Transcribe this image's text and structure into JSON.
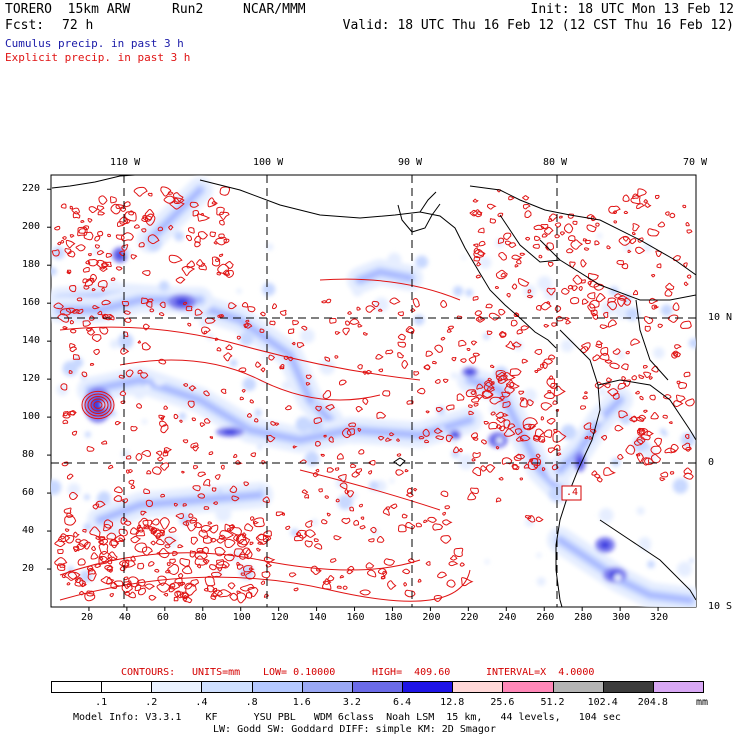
{
  "header": {
    "model": "TORERO  15km ARW",
    "run": "Run2",
    "org": "NCAR/MMM",
    "init": "Init: 18 UTC Mon 13 Feb 12",
    "fcst_label": "Fcst:",
    "fcst_value": "72 h",
    "valid": "Valid: 18 UTC Thu 16 Feb 12 (12 CST Thu 16 Feb 12)",
    "legend_cumulus": "Cumulus precip. in past 3 h",
    "legend_explicit": "Explicit precip. in past 3 h"
  },
  "colors": {
    "cumulus": "#1a1aa8",
    "explicit": "#e01414",
    "land_outline": "#000000",
    "grid": "#000000"
  },
  "map": {
    "top_lon_labels": [
      "110 W",
      "100 W",
      "90 W",
      "80 W",
      "70 W"
    ],
    "right_lat_labels": [
      "10 N",
      "0",
      "10 S"
    ],
    "y_ticks": [
      "220",
      "200",
      "180",
      "160",
      "140",
      "120",
      "100",
      "80",
      "60",
      "40",
      "20"
    ],
    "x_ticks": [
      "20",
      "40",
      "60",
      "80",
      "100",
      "120",
      "140",
      "160",
      "180",
      "200",
      "220",
      "240",
      "260",
      "280",
      "300",
      "320"
    ],
    "high_marker": ".4"
  },
  "contours_line": {
    "label": "CONTOURS:",
    "units": "UNITS=mm",
    "low": "LOW= 0.10000",
    "high": "HIGH=  409.60",
    "interval": "INTERVAL=X  4.0000"
  },
  "colorbar": {
    "levels": [
      ".1",
      ".2",
      ".4",
      ".8",
      "1.6",
      "3.2",
      "6.4",
      "12.8",
      "25.6",
      "51.2",
      "102.4",
      "204.8"
    ],
    "unit": "mm",
    "colors": [
      "#ffffff",
      "#ffffff",
      "#eaf2ff",
      "#cfe0ff",
      "#b4c8ff",
      "#9aa8f4",
      "#6b6be8",
      "#1e14e6",
      "#ffd8d8",
      "#ff88b8",
      "#b4b4b4",
      "#3c3c3c",
      "#d8a8f4"
    ]
  },
  "footer": {
    "line1": "Model Info: V3.3.1    KF      YSU PBL   WDM 6class  Noah LSM  15 km,   44 levels,   104 sec",
    "line2": "LW: Godd SW: Goddard DIFF: simple KM: 2D Smagor"
  }
}
